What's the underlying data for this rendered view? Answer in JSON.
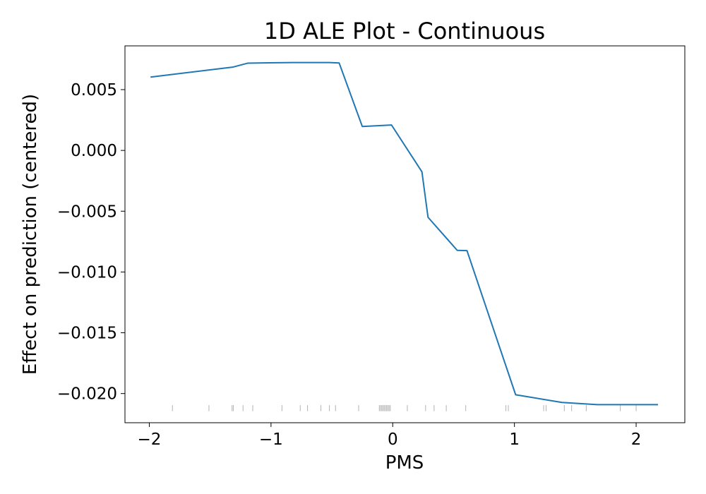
{
  "chart_data": {
    "type": "line",
    "title": "1D ALE Plot - Continuous",
    "xlabel": "PMS",
    "ylabel": "Effect on prediction (centered)",
    "xlim": [
      -2.2,
      2.4
    ],
    "ylim": [
      -0.0224,
      0.0086
    ],
    "x_ticks": [
      -2,
      -1,
      0,
      1,
      2
    ],
    "x_tick_labels": [
      "−2",
      "−1",
      "0",
      "1",
      "2"
    ],
    "y_ticks": [
      0.005,
      0.0,
      -0.005,
      -0.01,
      -0.015,
      -0.02
    ],
    "y_tick_labels": [
      "0.005",
      "0.000",
      "−0.005",
      "−0.010",
      "−0.015",
      "−0.020"
    ],
    "grid": false,
    "line_color": "#1f77b4",
    "rug_color": "#000000",
    "series": [
      {
        "x": [
          -1.99,
          -1.31,
          -1.19,
          -0.82,
          -0.52,
          -0.44,
          -0.25,
          -0.01,
          0.24,
          0.29,
          0.53,
          0.61,
          1.01,
          1.39,
          1.68,
          2.18
        ],
        "values": [
          0.00603,
          0.00686,
          0.00718,
          0.00723,
          0.00723,
          0.00719,
          0.00197,
          0.00209,
          -0.00176,
          -0.0055,
          -0.00822,
          -0.00824,
          -0.0201,
          -0.02073,
          -0.02091,
          -0.02091
        ]
      }
    ],
    "rug_x": [
      -1.81,
      -1.51,
      -1.32,
      -1.31,
      -1.23,
      -1.15,
      -0.91,
      -0.76,
      -0.7,
      -0.59,
      -0.52,
      -0.47,
      -0.28,
      -0.11,
      -0.1,
      -0.09,
      -0.08,
      -0.07,
      -0.06,
      -0.05,
      -0.04,
      -0.03,
      -0.02,
      0.12,
      0.27,
      0.34,
      0.44,
      0.6,
      0.93,
      0.95,
      1.24,
      1.26,
      1.41,
      1.47,
      1.59,
      1.87,
      2.0
    ]
  }
}
